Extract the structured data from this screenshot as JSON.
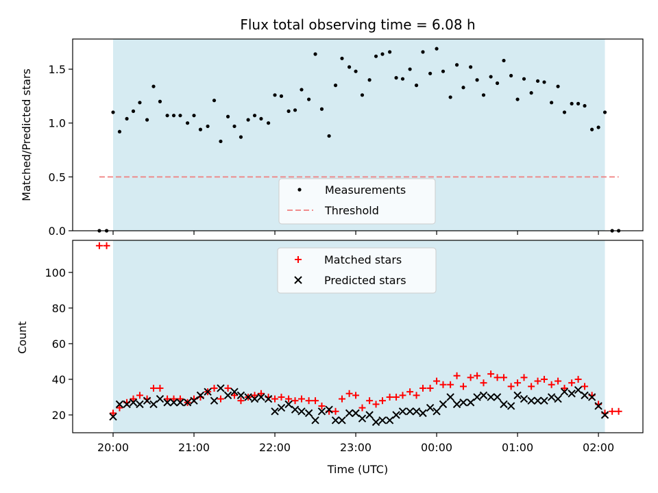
{
  "chart_data": [
    {
      "type": "scatter",
      "title": "Flux total observing time = 6.08 h",
      "xlabel": "",
      "ylabel": "Matched/Predicted stars",
      "ylim": [
        0,
        1.78
      ],
      "yticks": [
        0.0,
        0.5,
        1.0,
        1.5
      ],
      "ytick_labels": [
        "0.0",
        "0.5",
        "1.0",
        "1.5"
      ],
      "xlim_hours": [
        19.5,
        26.55
      ],
      "observing_window_hours": [
        20.0,
        26.08
      ],
      "shade_color": "#add8e6",
      "legend": {
        "placement": "lower center",
        "entries": [
          "Measurements",
          "Threshold"
        ]
      },
      "threshold": {
        "name": "Threshold",
        "value": 0.5,
        "x_range_hours": [
          19.83,
          26.25
        ],
        "color": "#f08080",
        "style": "dashed"
      },
      "series": [
        {
          "name": "Measurements",
          "color": "#000000",
          "marker": "dot",
          "x_hours": [
            19.83,
            19.92,
            20.0,
            20.08,
            20.17,
            20.25,
            20.33,
            20.42,
            20.5,
            20.58,
            20.67,
            20.75,
            20.83,
            20.92,
            21.0,
            21.08,
            21.17,
            21.25,
            21.33,
            21.42,
            21.5,
            21.58,
            21.67,
            21.75,
            21.83,
            21.92,
            22.0,
            22.08,
            22.17,
            22.25,
            22.33,
            22.42,
            22.5,
            22.58,
            22.67,
            22.75,
            22.83,
            22.92,
            23.0,
            23.08,
            23.17,
            23.25,
            23.33,
            23.42,
            23.5,
            23.58,
            23.67,
            23.75,
            23.83,
            23.92,
            24.0,
            24.08,
            24.17,
            24.25,
            24.33,
            24.42,
            24.5,
            24.58,
            24.67,
            24.75,
            24.83,
            24.92,
            25.0,
            25.08,
            25.17,
            25.25,
            25.33,
            25.42,
            25.5,
            25.58,
            25.67,
            25.75,
            25.83,
            25.92,
            26.0,
            26.08,
            26.17,
            26.25
          ],
          "y": [
            0.0,
            0.0,
            1.1,
            0.92,
            1.04,
            1.11,
            1.19,
            1.03,
            1.34,
            1.2,
            1.07,
            1.07,
            1.07,
            1.0,
            1.07,
            0.94,
            0.97,
            1.21,
            0.83,
            1.06,
            0.97,
            0.87,
            1.03,
            1.07,
            1.04,
            1.0,
            1.26,
            1.25,
            1.11,
            1.12,
            1.31,
            1.22,
            1.64,
            1.13,
            0.88,
            1.35,
            1.6,
            1.52,
            1.48,
            1.26,
            1.4,
            1.62,
            1.64,
            1.66,
            1.42,
            1.41,
            1.5,
            1.35,
            1.66,
            1.46,
            1.69,
            1.48,
            1.24,
            1.54,
            1.33,
            1.52,
            1.4,
            1.26,
            1.43,
            1.37,
            1.58,
            1.44,
            1.22,
            1.41,
            1.28,
            1.39,
            1.38,
            1.19,
            1.34,
            1.1,
            1.18,
            1.18,
            1.16,
            0.94,
            0.96,
            1.1,
            0.0,
            0.0
          ]
        }
      ]
    },
    {
      "type": "scatter",
      "title": "",
      "xlabel": "Time (UTC)",
      "ylabel": "Count",
      "ylim": [
        10,
        118
      ],
      "yticks": [
        20,
        40,
        60,
        80,
        100
      ],
      "ytick_labels": [
        "20",
        "40",
        "60",
        "80",
        "100"
      ],
      "xticks_hours": [
        20,
        21,
        22,
        23,
        24,
        25,
        26
      ],
      "xtick_labels": [
        "20:00",
        "21:00",
        "22:00",
        "23:00",
        "00:00",
        "01:00",
        "02:00"
      ],
      "xlim_hours": [
        19.5,
        26.55
      ],
      "observing_window_hours": [
        20.0,
        26.08
      ],
      "shade_color": "#add8e6",
      "legend": {
        "placement": "upper center",
        "entries": [
          "Matched stars",
          "Predicted stars"
        ]
      },
      "series": [
        {
          "name": "Matched stars",
          "color": "#ff0000",
          "marker": "plus",
          "x_hours": [
            19.83,
            19.92,
            20.0,
            20.08,
            20.17,
            20.25,
            20.33,
            20.42,
            20.5,
            20.58,
            20.67,
            20.75,
            20.83,
            20.92,
            21.0,
            21.08,
            21.17,
            21.25,
            21.33,
            21.42,
            21.5,
            21.58,
            21.67,
            21.75,
            21.83,
            21.92,
            22.0,
            22.08,
            22.17,
            22.25,
            22.33,
            22.42,
            22.5,
            22.58,
            22.67,
            22.75,
            22.83,
            22.92,
            23.0,
            23.08,
            23.17,
            23.25,
            23.33,
            23.42,
            23.5,
            23.58,
            23.67,
            23.75,
            23.83,
            23.92,
            24.0,
            24.08,
            24.17,
            24.25,
            24.33,
            24.42,
            24.5,
            24.58,
            24.67,
            24.75,
            24.83,
            24.92,
            25.0,
            25.08,
            25.17,
            25.25,
            25.33,
            25.42,
            25.5,
            25.58,
            25.67,
            25.75,
            25.83,
            25.92,
            26.0,
            26.08,
            26.17,
            26.25
          ],
          "y": [
            115,
            115,
            21,
            24,
            27,
            29,
            31,
            29,
            35,
            35,
            29,
            29,
            29,
            27,
            29,
            30,
            33,
            35,
            29,
            35,
            31,
            28,
            30,
            31,
            32,
            30,
            29,
            30,
            29,
            28,
            29,
            28,
            28,
            25,
            22,
            22,
            29,
            32,
            31,
            24,
            28,
            26,
            28,
            30,
            30,
            31,
            33,
            31,
            35,
            35,
            39,
            37,
            37,
            42,
            36,
            41,
            42,
            38,
            43,
            41,
            41,
            36,
            38,
            41,
            36,
            39,
            40,
            37,
            39,
            35,
            38,
            40,
            36,
            31,
            26,
            21,
            22,
            22
          ]
        },
        {
          "name": "Predicted stars",
          "color": "#000000",
          "marker": "x",
          "x_hours": [
            20.0,
            20.08,
            20.17,
            20.25,
            20.33,
            20.42,
            20.5,
            20.58,
            20.67,
            20.75,
            20.83,
            20.92,
            21.0,
            21.08,
            21.17,
            21.25,
            21.33,
            21.42,
            21.5,
            21.58,
            21.67,
            21.75,
            21.83,
            21.92,
            22.0,
            22.08,
            22.17,
            22.25,
            22.33,
            22.42,
            22.5,
            22.58,
            22.67,
            22.75,
            22.83,
            22.92,
            23.0,
            23.08,
            23.17,
            23.25,
            23.33,
            23.42,
            23.5,
            23.58,
            23.67,
            23.75,
            23.83,
            23.92,
            24.0,
            24.08,
            24.17,
            24.25,
            24.33,
            24.42,
            24.5,
            24.58,
            24.67,
            24.75,
            24.83,
            24.92,
            25.0,
            25.08,
            25.17,
            25.25,
            25.33,
            25.42,
            25.5,
            25.58,
            25.67,
            25.75,
            25.83,
            25.92,
            26.0,
            26.08
          ],
          "y": [
            19,
            26,
            26,
            27,
            26,
            28,
            26,
            29,
            27,
            27,
            27,
            27,
            28,
            31,
            33,
            28,
            35,
            31,
            33,
            31,
            30,
            29,
            30,
            29,
            22,
            24,
            26,
            23,
            22,
            21,
            17,
            22,
            23,
            17,
            17,
            21,
            21,
            18,
            20,
            16,
            17,
            17,
            20,
            22,
            22,
            22,
            21,
            24,
            22,
            26,
            30,
            26,
            27,
            27,
            30,
            31,
            30,
            30,
            26,
            25,
            31,
            29,
            28,
            28,
            28,
            30,
            29,
            33,
            32,
            34,
            31,
            30,
            25,
            20
          ]
        }
      ]
    }
  ]
}
